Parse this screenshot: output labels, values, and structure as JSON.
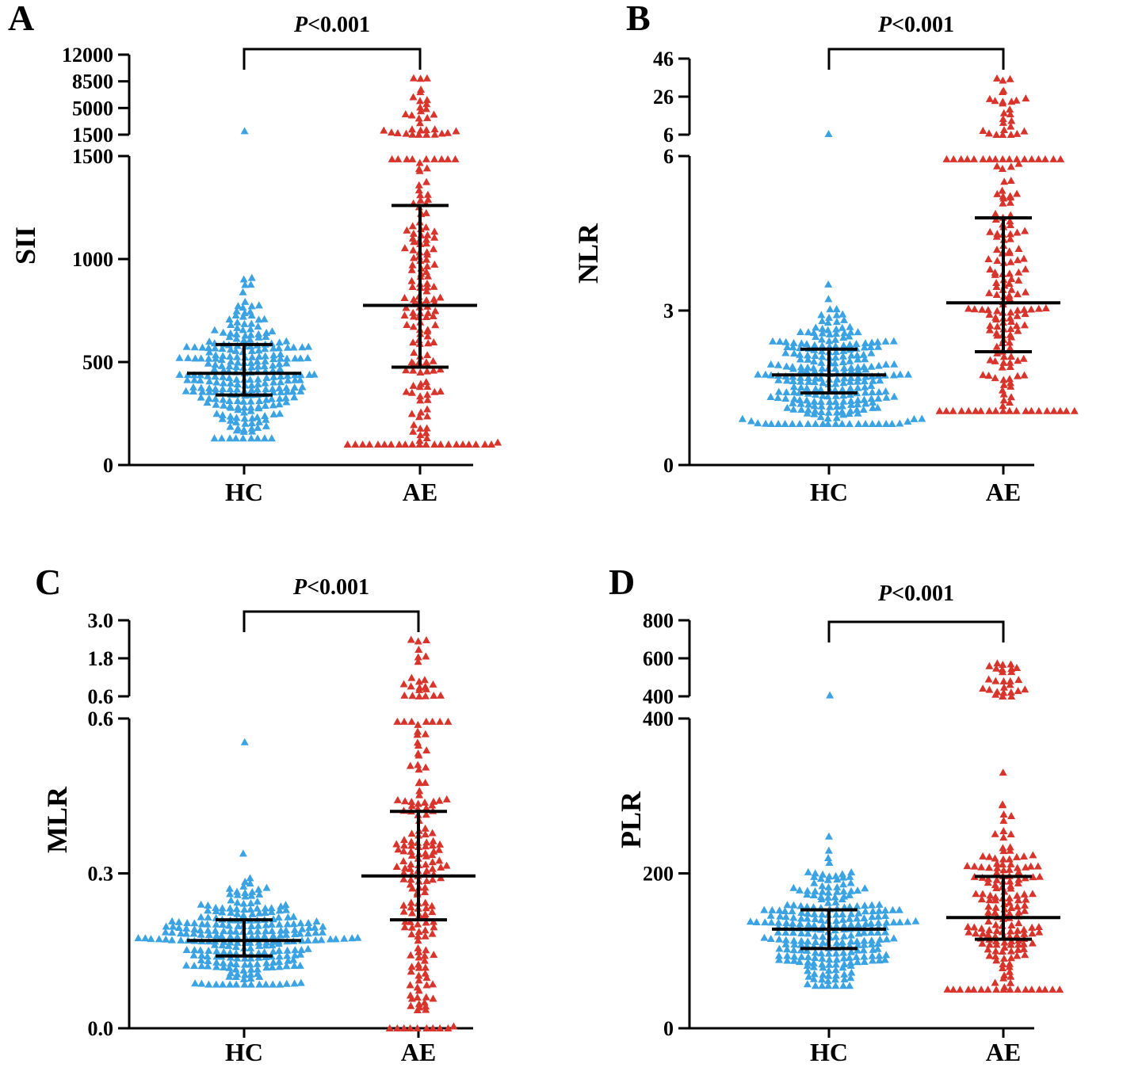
{
  "colors": {
    "hc": "#3ba3e3",
    "ae": "#d9342b",
    "axis": "#000000"
  },
  "chart_data": [
    {
      "type": "scatter",
      "panel_label": "A",
      "ylabel": "SII",
      "categories": [
        "HC",
        "AE"
      ],
      "significance": {
        "italic": "P",
        "rest": "<0.001"
      },
      "axis_segments": [
        {
          "ylim": [
            0,
            1500
          ],
          "ticks": [
            0,
            500,
            1000,
            1500
          ],
          "tick_labels": [
            "0",
            "500",
            "1000",
            "1500"
          ]
        },
        {
          "ylim": [
            1500,
            12000
          ],
          "ticks": [
            1500,
            5000,
            8500,
            12000
          ],
          "tick_labels": [
            "1500",
            "5000",
            "8500",
            "12000"
          ]
        }
      ],
      "n": {
        "HC": 260,
        "AE": 200
      },
      "summary": {
        "HC": {
          "median": 445,
          "q1": 340,
          "q3": 585
        },
        "AE": {
          "median": 775,
          "q1": 475,
          "q3": 1260
        }
      },
      "range": {
        "HC": [
          130,
          2000
        ],
        "AE": [
          100,
          9000
        ]
      }
    },
    {
      "type": "scatter",
      "panel_label": "B",
      "ylabel": "NLR",
      "categories": [
        "HC",
        "AE"
      ],
      "significance": {
        "italic": "P",
        "rest": "<0.001"
      },
      "axis_segments": [
        {
          "ylim": [
            0,
            6
          ],
          "ticks": [
            0,
            3,
            6
          ],
          "tick_labels": [
            "0",
            "3",
            "6"
          ]
        },
        {
          "ylim": [
            6,
            46
          ],
          "ticks": [
            6,
            26,
            46
          ],
          "tick_labels": [
            "6",
            "26",
            "46"
          ]
        }
      ],
      "n": {
        "HC": 260,
        "AE": 200
      },
      "summary": {
        "HC": {
          "median": 1.75,
          "q1": 1.4,
          "q3": 2.25
        },
        "AE": {
          "median": 3.15,
          "q1": 2.2,
          "q3": 4.8
        }
      },
      "range": {
        "HC": [
          0.8,
          6.5
        ],
        "AE": [
          1.05,
          36
        ]
      }
    },
    {
      "type": "scatter",
      "panel_label": "C",
      "ylabel": "MLR",
      "categories": [
        "HC",
        "AE"
      ],
      "significance": {
        "italic": "P",
        "rest": "<0.001"
      },
      "axis_segments": [
        {
          "ylim": [
            0,
            0.6
          ],
          "ticks": [
            0.0,
            0.3,
            0.6
          ],
          "tick_labels": [
            "0.0",
            "0.3",
            "0.6"
          ]
        },
        {
          "ylim": [
            0.6,
            3.0
          ],
          "ticks": [
            0.6,
            1.8,
            3.0
          ],
          "tick_labels": [
            "0.6",
            "1.8",
            "3.0"
          ]
        }
      ],
      "n": {
        "HC": 260,
        "AE": 200
      },
      "summary": {
        "HC": {
          "median": 0.17,
          "q1": 0.14,
          "q3": 0.21
        },
        "AE": {
          "median": 0.295,
          "q1": 0.21,
          "q3": 0.42
        }
      },
      "range": {
        "HC": [
          0.085,
          0.56
        ],
        "AE": [
          0.0,
          2.4
        ]
      }
    },
    {
      "type": "scatter",
      "panel_label": "D",
      "ylabel": "PLR",
      "categories": [
        "HC",
        "AE"
      ],
      "significance": {
        "italic": "P",
        "rest": "<0.001"
      },
      "axis_segments": [
        {
          "ylim": [
            0,
            400
          ],
          "ticks": [
            0,
            200,
            400
          ],
          "tick_labels": [
            "0",
            "200",
            "400"
          ]
        },
        {
          "ylim": [
            400,
            800
          ],
          "ticks": [
            400,
            600,
            800
          ],
          "tick_labels": [
            "400",
            "600",
            "800"
          ]
        }
      ],
      "n": {
        "HC": 260,
        "AE": 200
      },
      "summary": {
        "HC": {
          "median": 128,
          "q1": 103,
          "q3": 153
        },
        "AE": {
          "median": 143,
          "q1": 115,
          "q3": 196
        }
      },
      "range": {
        "HC": [
          55,
          410
        ],
        "AE": [
          50,
          580
        ]
      }
    }
  ]
}
